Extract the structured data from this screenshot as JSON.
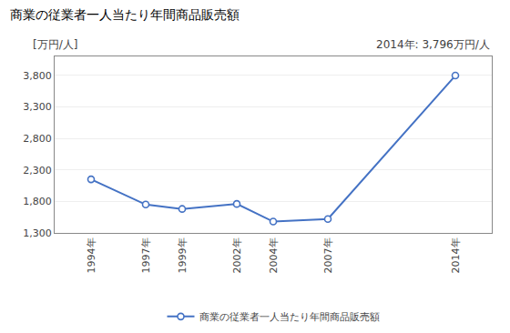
{
  "chart_data": {
    "type": "line",
    "title": "商業の従業者一人当たり年間商品販売額",
    "ylabel": "[万円/人]",
    "annotation": "2014年: 3,796万円/人",
    "x": [
      1994,
      1997,
      1999,
      2002,
      2004,
      2007,
      2014
    ],
    "series": [
      {
        "name": "商業の従業者一人当たり年間商品販売額",
        "color": "#4472c4",
        "values": [
          2150,
          1750,
          1680,
          1760,
          1480,
          1520,
          3796
        ]
      }
    ],
    "xlim": [
      1992,
      2016
    ],
    "xticks": [
      {
        "value": 1994,
        "label": "1994年"
      },
      {
        "value": 1997,
        "label": "1997年"
      },
      {
        "value": 1999,
        "label": "1999年"
      },
      {
        "value": 2002,
        "label": "2002年"
      },
      {
        "value": 2004,
        "label": "2004年"
      },
      {
        "value": 2007,
        "label": "2007年"
      },
      {
        "value": 2014,
        "label": "2014年"
      }
    ],
    "ylim": [
      1300,
      4100
    ],
    "yticks": [
      {
        "value": 1300,
        "label": "1,300"
      },
      {
        "value": 1800,
        "label": "1,800"
      },
      {
        "value": 2300,
        "label": "2,300"
      },
      {
        "value": 2800,
        "label": "2,800"
      },
      {
        "value": 3300,
        "label": "3,300"
      },
      {
        "value": 3800,
        "label": "3,800"
      }
    ],
    "grid": true,
    "legend": "bottom",
    "marker": "circle"
  }
}
